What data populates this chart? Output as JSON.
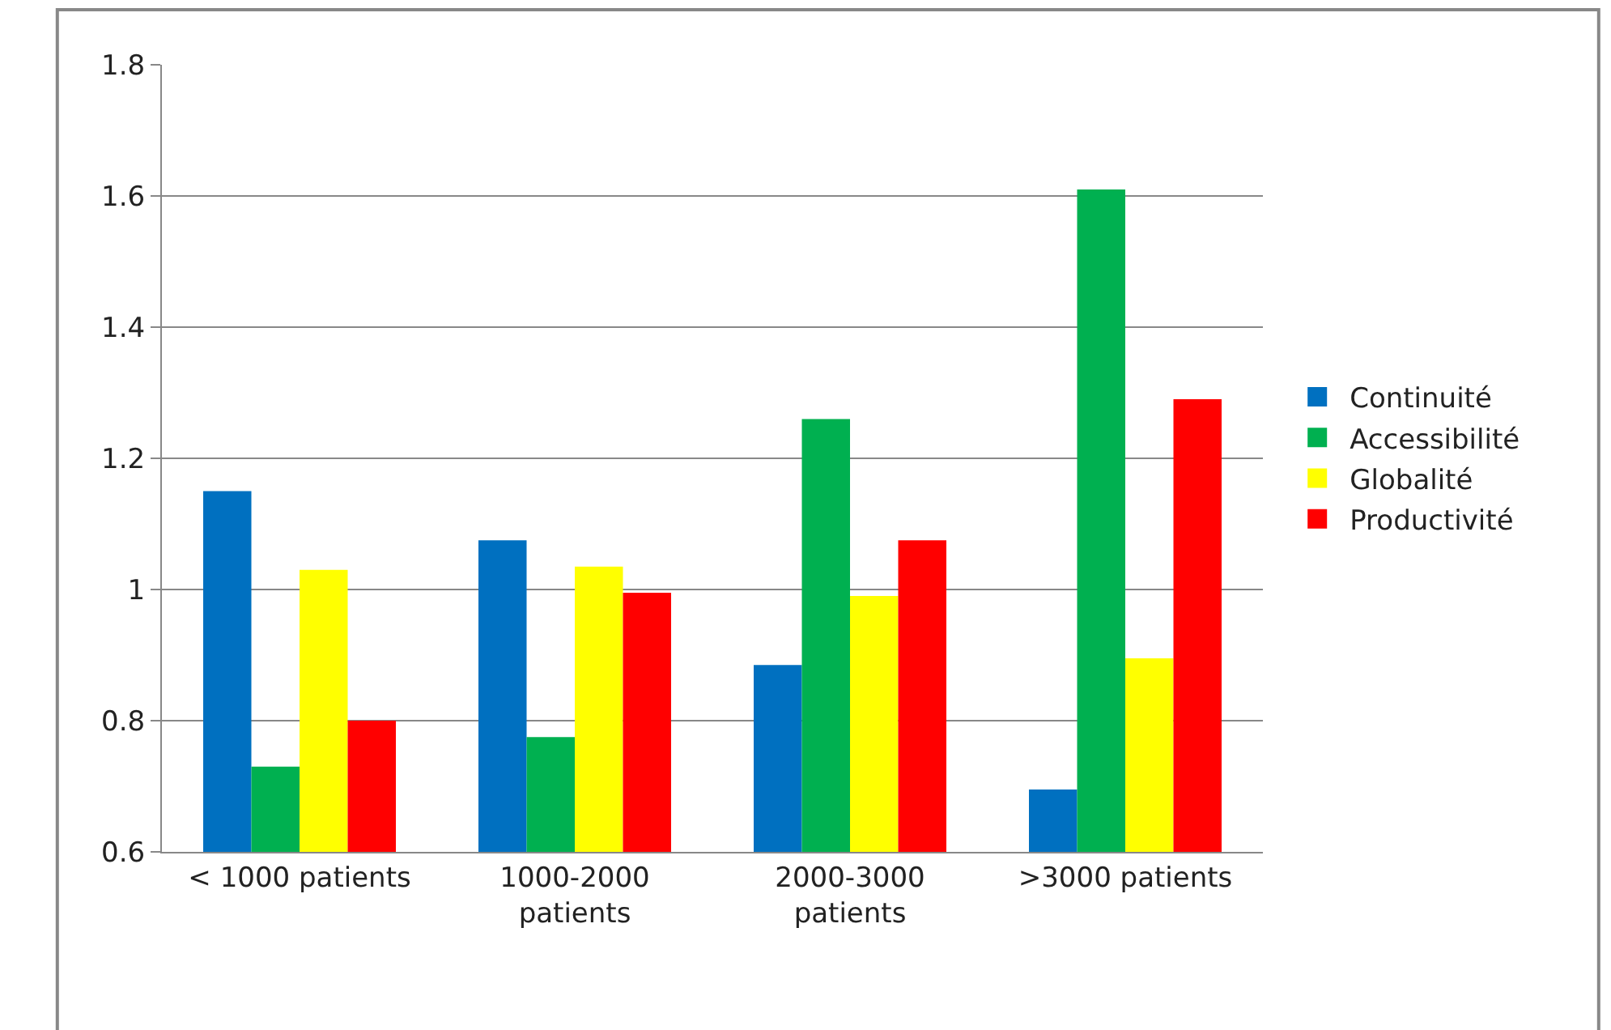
{
  "chart_data": {
    "type": "bar",
    "categories": [
      "< 1000 patients",
      "1000-2000 patients",
      "2000-3000 patients",
      ">3000 patients"
    ],
    "series": [
      {
        "name": "Continuité",
        "color": "#0070c0",
        "values": [
          1.15,
          1.075,
          0.885,
          0.695
        ]
      },
      {
        "name": "Accessibilité",
        "color": "#00b050",
        "values": [
          0.73,
          0.775,
          1.26,
          1.61
        ]
      },
      {
        "name": "Globalité",
        "color": "#ffff00",
        "values": [
          1.03,
          1.035,
          0.99,
          0.895
        ]
      },
      {
        "name": "Productivité",
        "color": "#ff0000",
        "values": [
          0.8,
          0.995,
          1.075,
          1.29
        ]
      }
    ],
    "ylim": [
      0.6,
      1.8
    ],
    "yticks": [
      0.6,
      0.8,
      1,
      1.2,
      1.4,
      1.6,
      1.8
    ],
    "grid": "y",
    "legend": "right"
  }
}
